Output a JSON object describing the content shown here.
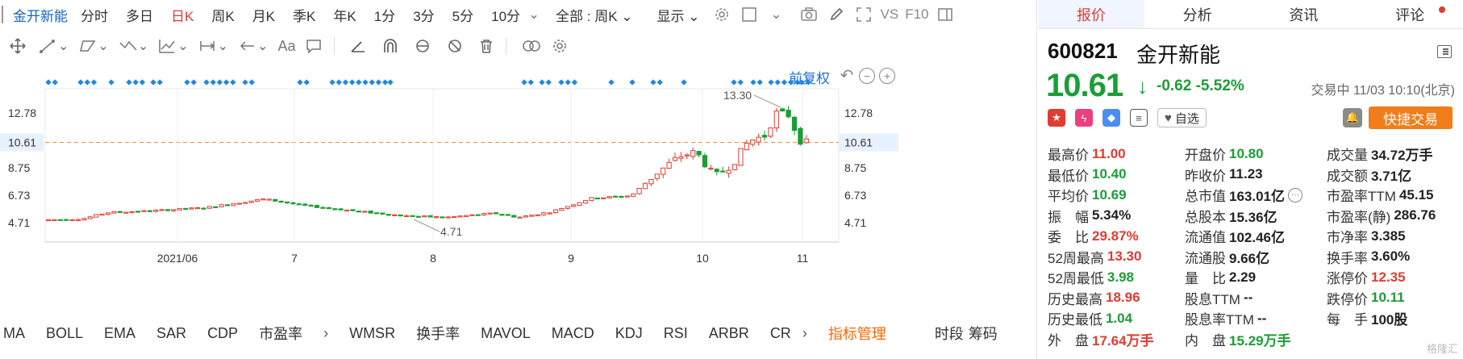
{
  "toolbar": {
    "stock_name": "金开新能",
    "periods": [
      "分时",
      "多日",
      "日K",
      "周K",
      "月K",
      "季K",
      "年K",
      "1分",
      "3分",
      "5分",
      "10分"
    ],
    "active_period": "日K",
    "range_select": "全部 : 周K",
    "display_label": "显示",
    "vs_label": "VS",
    "f10_label": "F10"
  },
  "chart": {
    "fq_label": "前复权",
    "icons": [
      "undo-icon",
      "zoom-out-icon",
      "zoom-in-icon"
    ]
  },
  "chart_data": {
    "type": "candlestick",
    "y_ticks": [
      "12.78",
      "10.61",
      "8.75",
      "6.73",
      "4.71"
    ],
    "x_ticks": [
      "2021/06",
      "7",
      "8",
      "9",
      "10",
      "11"
    ],
    "current_price_line": "10.61",
    "high_annotation": "13.30",
    "low_annotation": "4.71",
    "ylim": [
      3.5,
      14.5
    ],
    "colors": {
      "up": "#e03c31",
      "down": "#1a9e35",
      "signal": "#1e88e5",
      "price_line": "#f08a3c"
    }
  },
  "indicators": [
    "MA",
    "BOLL",
    "EMA",
    "SAR",
    "CDP",
    "市盈率",
    "WMSR",
    "换手率",
    "MAVOL",
    "MACD",
    "KDJ",
    "RSI",
    "ARBR",
    "CR"
  ],
  "indicator_manage": "指标管理",
  "time_labels": [
    "时段",
    "筹码"
  ],
  "panel": {
    "tabs": [
      "报价",
      "分析",
      "资讯",
      "评论"
    ],
    "active_tab": "报价",
    "code": "600821",
    "name": "金开新能",
    "price": "10.61",
    "change": "-0.62",
    "change_pct": "-5.52%",
    "trade_status": "交易中 11/03 10:10(北京)",
    "fav_label": "自选",
    "quick_trade": "快捷交易"
  },
  "quotes": [
    [
      {
        "l": "最高价",
        "v": "11.00",
        "c": "red"
      },
      {
        "l": "开盘价",
        "v": "10.80",
        "c": "green"
      },
      {
        "l": "成交量",
        "v": "34.72万手",
        "c": "black"
      }
    ],
    [
      {
        "l": "最低价",
        "v": "10.40",
        "c": "green"
      },
      {
        "l": "昨收价",
        "v": "11.23",
        "c": "black"
      },
      {
        "l": "成交额",
        "v": "3.71亿",
        "c": "black"
      }
    ],
    [
      {
        "l": "平均价",
        "v": "10.69",
        "c": "green"
      },
      {
        "l": "总市值",
        "v": "163.01亿",
        "c": "black"
      },
      {
        "l": "市盈率TTM",
        "v": "45.15",
        "c": "black"
      }
    ],
    [
      {
        "l": "振　幅",
        "v": "5.34%",
        "c": "black"
      },
      {
        "l": "总股本",
        "v": "15.36亿",
        "c": "black"
      },
      {
        "l": "市盈率(静)",
        "v": "286.76",
        "c": "black"
      }
    ],
    [
      {
        "l": "委　比",
        "v": "29.87%",
        "c": "red"
      },
      {
        "l": "流通值",
        "v": "102.46亿",
        "c": "black"
      },
      {
        "l": "市净率",
        "v": "3.385",
        "c": "black"
      }
    ],
    [
      {
        "l": "52周最高",
        "v": "13.30",
        "c": "red"
      },
      {
        "l": "流通股",
        "v": "9.66亿",
        "c": "black"
      },
      {
        "l": "换手率",
        "v": "3.60%",
        "c": "black"
      }
    ],
    [
      {
        "l": "52周最低",
        "v": "3.98",
        "c": "green"
      },
      {
        "l": "量　比",
        "v": "2.29",
        "c": "black"
      },
      {
        "l": "涨停价",
        "v": "12.35",
        "c": "red"
      }
    ],
    [
      {
        "l": "历史最高",
        "v": "18.96",
        "c": "red"
      },
      {
        "l": "股息TTM",
        "v": "--",
        "c": "black"
      },
      {
        "l": "跌停价",
        "v": "10.11",
        "c": "green"
      }
    ],
    [
      {
        "l": "历史最低",
        "v": "1.04",
        "c": "green"
      },
      {
        "l": "股息率TTM",
        "v": "--",
        "c": "black"
      },
      {
        "l": "每　手",
        "v": "100股",
        "c": "black"
      }
    ],
    [
      {
        "l": "外　盘",
        "v": "17.64万手",
        "c": "red"
      },
      {
        "l": "内　盘",
        "v": "15.29万手",
        "c": "green"
      },
      {
        "l": "",
        "v": "",
        "c": "black"
      }
    ]
  ],
  "watermark": "格隆汇"
}
